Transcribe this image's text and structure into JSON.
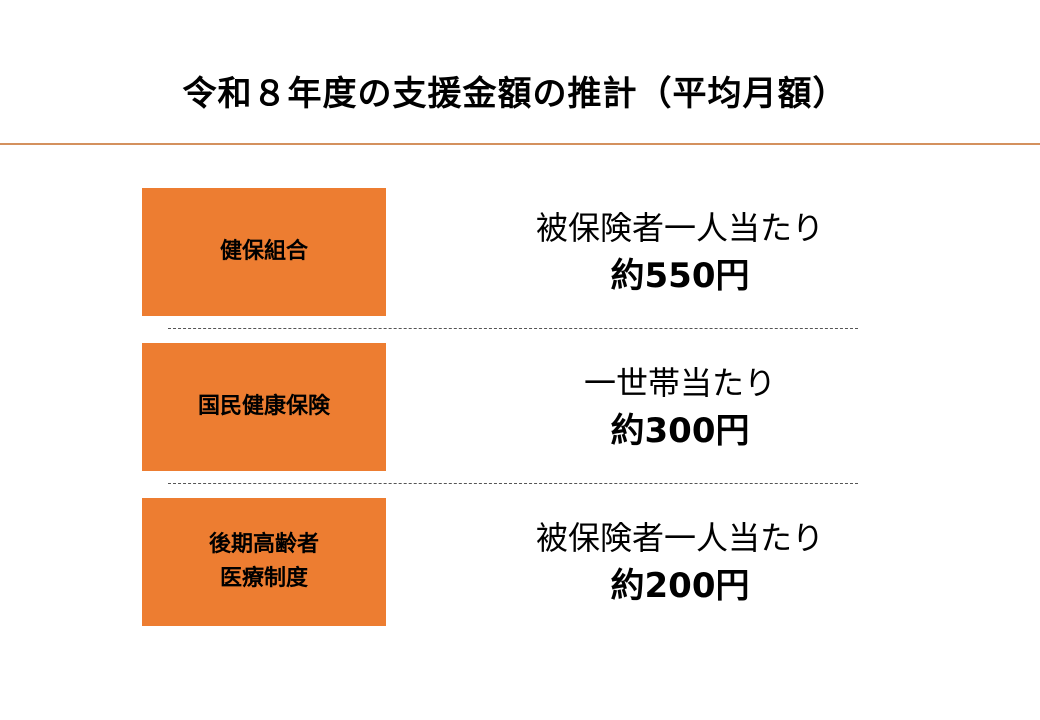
{
  "title": "令和８年度の支援金額の推計（平均月額）",
  "colors": {
    "box": "#ED7D31",
    "rule": "#D4915E"
  },
  "rows": [
    {
      "label": "健保組合",
      "basis": "被保険者一人当たり",
      "amount": "約550円"
    },
    {
      "label": "国民健康保険",
      "basis": "一世帯当たり",
      "amount": "約300円"
    },
    {
      "label": "後期高齢者\n医療制度",
      "basis": "被保険者一人当たり",
      "amount": "約200円"
    }
  ]
}
